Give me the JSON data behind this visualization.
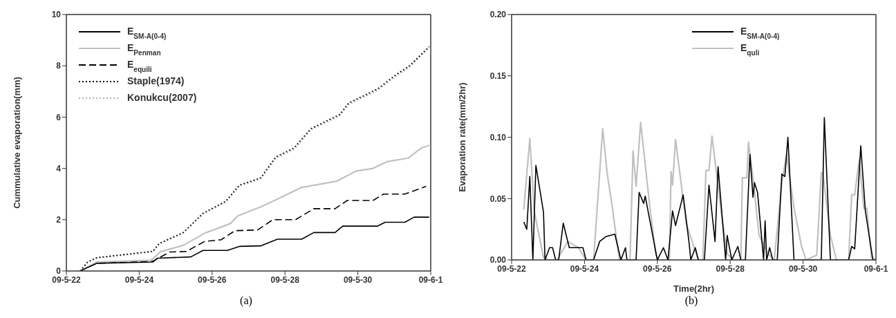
{
  "chart_data": [
    {
      "type": "line",
      "ylabel": "Cummulative evaporation(mm)",
      "legend": "top left",
      "marker": "none",
      "xlim": [
        "--05-22",
        "--06-01"
      ],
      "xticks": [
        {
          "value": "--05-22",
          "label": "09-5-22"
        },
        {
          "value": "--05-24",
          "label": "09-5-24"
        },
        {
          "value": "--05-26",
          "label": "09-5-26"
        },
        {
          "value": "--05-28",
          "label": "09-5-28"
        },
        {
          "value": "--05-30",
          "label": "09-5-30"
        },
        {
          "value": "--06-01",
          "label": "09-6-1"
        }
      ],
      "ylim": [
        0,
        10
      ],
      "yticks": [
        0,
        2,
        4,
        6,
        8,
        10
      ],
      "annotations": [
        "(a)"
      ],
      "series": [
        {
          "name": "E$_{SM-A(0-4)}$",
          "color": "#000000",
          "line_style": "solid",
          "x": [
            "--05-22T09:00",
            "--05-22T20:00",
            "--05-24T09:00",
            "--05-24T12:00",
            "--05-25T10:00",
            "--05-25T18:00",
            "--05-26T10:00",
            "--05-26T18:00",
            "--05-27T08:00",
            "--05-27T19:00",
            "--05-28T11:00",
            "--05-28T19:00",
            "--05-29T09:00",
            "--05-29T14:00",
            "--05-30T13:00",
            "--05-30T18:00",
            "--05-31T07:00",
            "--05-31T13:00",
            "--05-31T23:00"
          ],
          "values": [
            0,
            0.3,
            0.35,
            0.5,
            0.55,
            0.8,
            0.8,
            0.96,
            0.98,
            1.24,
            1.24,
            1.5,
            1.5,
            1.75,
            1.75,
            1.9,
            1.9,
            2.1,
            2.1
          ]
        },
        {
          "name": "E$_{Penman}$",
          "color": "#c0c0c0",
          "line_style": "solid",
          "x": [
            "--05-22T09:00",
            "--05-22T20:00",
            "--05-24T08:00",
            "--05-24T14:00",
            "--05-25T05:00",
            "--05-25T20:00",
            "--05-26T01:00",
            "--05-26T12:00",
            "--05-26T17:00",
            "--05-27T08:00",
            "--05-27T19:00",
            "--05-28T11:00",
            "--05-29T10:00",
            "--05-29T23:00",
            "--05-30T10:00",
            "--05-30T19:00",
            "--05-31T09:00",
            "--05-31T18:00",
            "--05-31T23:00"
          ],
          "values": [
            0,
            0.35,
            0.42,
            0.75,
            1.0,
            1.5,
            1.6,
            1.85,
            2.15,
            2.5,
            2.8,
            3.26,
            3.5,
            3.9,
            4.0,
            4.26,
            4.4,
            4.8,
            4.9
          ]
        },
        {
          "name": "E$_{equili}$",
          "color": "#000000",
          "line_style": "dashed",
          "x": [
            "--05-22T09:00",
            "--05-22T20:00",
            "--05-24T09:00",
            "--05-24T20:00",
            "--05-25T07:00",
            "--05-25T19:00",
            "--05-26T06:00",
            "--05-26T15:00",
            "--05-27T06:00",
            "--05-27T16:00",
            "--05-28T07:00",
            "--05-28T19:00",
            "--05-29T09:00",
            "--05-29T17:00",
            "--05-30T10:00",
            "--05-30T17:00",
            "--05-31T07:00",
            "--05-31T21:00"
          ],
          "values": [
            0,
            0.3,
            0.38,
            0.74,
            0.76,
            1.15,
            1.22,
            1.57,
            1.6,
            2.0,
            2.0,
            2.43,
            2.43,
            2.75,
            2.75,
            3.0,
            3.0,
            3.3
          ]
        },
        {
          "name": "Staple(1974)",
          "color": "#000000",
          "line_style": "dotted",
          "x": [
            "--05-22T09:00",
            "--05-22T14:00",
            "--05-22T20:00",
            "--05-24T09:00",
            "--05-24T13:00",
            "--05-25T05:00",
            "--05-25T18:00",
            "--05-26T09:00",
            "--05-26T18:00",
            "--05-27T08:00",
            "--05-27T18:00",
            "--05-28T06:00",
            "--05-28T17:00",
            "--05-29T12:00",
            "--05-29T18:00",
            "--05-30T13:00",
            "--05-31T01:00",
            "--05-31T10:00",
            "--05-31T23:00"
          ],
          "values": [
            0,
            0.35,
            0.52,
            0.77,
            1.07,
            1.5,
            2.25,
            2.72,
            3.35,
            3.63,
            4.45,
            4.8,
            5.55,
            6.1,
            6.55,
            7.1,
            7.65,
            8.0,
            8.75
          ]
        },
        {
          "name": "Konukcu(2007)",
          "color": "#b0b0b0",
          "line_style": "dotted",
          "x": [
            "--05-22T09:00",
            "--05-22T14:00",
            "--05-22T20:00",
            "--05-24T09:00",
            "--05-24T13:00",
            "--05-25T05:00",
            "--05-25T18:00",
            "--05-26T09:00",
            "--05-26T18:00",
            "--05-27T08:00",
            "--05-27T18:00",
            "--05-28T06:00",
            "--05-28T17:00",
            "--05-29T12:00",
            "--05-29T18:00",
            "--05-30T13:00",
            "--05-31T01:00",
            "--05-31T10:00",
            "--05-31T23:00"
          ],
          "values": [
            0,
            0.33,
            0.5,
            0.75,
            1.05,
            1.48,
            2.22,
            2.7,
            3.32,
            3.6,
            4.4,
            4.75,
            5.5,
            6.05,
            6.5,
            7.05,
            7.6,
            7.95,
            8.7
          ]
        }
      ]
    },
    {
      "type": "line",
      "xlabel": "Time(2hr)",
      "ylabel": "Evaporation rate(mm/2hr)",
      "legend": "top right",
      "marker": "none",
      "xlim": [
        "--05-22",
        "--06-01"
      ],
      "xticks": [
        {
          "value": "--05-22",
          "label": "09-5-22"
        },
        {
          "value": "--05-24",
          "label": "09-5-24"
        },
        {
          "value": "--05-26",
          "label": "09-5-26"
        },
        {
          "value": "--05-28",
          "label": "09-5-28"
        },
        {
          "value": "--05-30",
          "label": "09-5-30"
        },
        {
          "value": "--06-01",
          "label": "09-6-1"
        }
      ],
      "ylim": [
        0,
        0.2
      ],
      "yticks": [
        {
          "value": 0,
          "label": "0.00"
        },
        {
          "value": 0.05,
          "label": "0.05"
        },
        {
          "value": 0.1,
          "label": "0.10"
        },
        {
          "value": 0.15,
          "label": "0.15"
        },
        {
          "value": 0.2,
          "label": "0.20"
        }
      ],
      "annotations": [
        "(b)"
      ],
      "series": [
        {
          "name": "E$_{SM-A(0-4)}$",
          "color": "#000000",
          "line_style": "solid",
          "x": [
            "--05-22T08:00",
            "--05-22T10:00",
            "--05-22T12:00",
            "--05-22T14:00",
            "--05-22T16:00",
            "--05-22T21:00",
            "--05-22T22:00",
            "--05-23T01:00",
            "--05-23T03:00",
            "--05-23T05:00",
            "--05-23T07:00",
            "--05-23T10:00",
            "--05-23T14:00",
            "--05-23T23:00",
            "--05-24T01:00",
            "--05-24T06:00",
            "--05-24T10:00",
            "--05-24T14:00",
            "--05-24T20:00",
            "--05-25T00:00",
            "--05-25T03:00",
            "--05-25T04:00",
            "--05-25T10:00",
            "--05-25T12:00",
            "--05-25T15:00",
            "--05-25T16:00",
            "--05-26T00:00",
            "--05-26T04:00",
            "--05-26T07:00",
            "--05-26T10:00",
            "--05-26T12:00",
            "--05-26T17:00",
            "--05-26T21:00",
            "--05-26T22:00",
            "--05-27T01:00",
            "--05-27T03:00",
            "--05-27T07:00",
            "--05-27T10:00",
            "--05-27T14:00",
            "--05-27T16:00",
            "--05-27T21:00",
            "--05-27T22:00",
            "--05-28T01:00",
            "--05-28T05:00",
            "--05-28T07:00",
            "--05-28T10:00",
            "--05-28T13:00",
            "--05-28T15:00",
            "--05-28T16:00",
            "--05-28T18:00",
            "--05-28T22:00",
            "--05-28T23:00",
            "--05-29T00:00",
            "--05-29T02:00",
            "--05-29T04:00",
            "--05-29T07:00",
            "--05-29T10:00",
            "--05-29T12:00",
            "--05-29T14:00",
            "--05-29T18:00",
            "--05-30T00:00",
            "--05-30T07:00",
            "--05-30T12:00",
            "--05-30T14:00",
            "--05-30T18:00",
            "--05-31T06:00",
            "--05-31T08:00",
            "--05-31T10:00",
            "--05-31T14:00",
            "--05-31T17:00",
            "--05-31T22:00",
            "--06-01T00:00"
          ],
          "values": [
            0.031,
            0.025,
            0.068,
            0,
            0.077,
            0.039,
            0,
            0.01,
            0.01,
            0,
            0,
            0.03,
            0.01,
            0.01,
            0,
            0,
            0.015,
            0.019,
            0.021,
            0,
            0.01,
            0,
            0,
            0.055,
            0.046,
            0.052,
            0,
            0.01,
            0,
            0.04,
            0.028,
            0.053,
            0.013,
            0,
            0.01,
            0,
            0,
            0.061,
            0.015,
            0.076,
            0,
            0.02,
            0,
            0.011,
            0,
            0,
            0.086,
            0.051,
            0.063,
            0.055,
            0,
            0.032,
            0,
            0.01,
            0,
            0,
            0.07,
            0.068,
            0.1,
            0,
            0,
            0,
            0,
            0.116,
            0,
            0,
            0.011,
            0.009,
            0.093,
            0.04,
            0,
            0
          ]
        },
        {
          "name": "E$_{quli}$",
          "color": "#c0c0c0",
          "line_style": "solid",
          "x": [
            "--05-22T08:00",
            "--05-22T12:00",
            "--05-22T15:00",
            "--05-22T21:00",
            "--05-23T00:00",
            "--05-23T06:00",
            "--05-23T13:00",
            "--05-23T20:00",
            "--05-24T01:00",
            "--05-24T06:00",
            "--05-24T12:00",
            "--05-24T15:00",
            "--05-24T18:00",
            "--05-24T23:00",
            "--05-25T06:00",
            "--05-25T08:00",
            "--05-25T10:00",
            "--05-25T13:00",
            "--05-25T19:00",
            "--05-25T23:00",
            "--05-26T01:00",
            "--05-26T08:00",
            "--05-26T09:00",
            "--05-26T10:00",
            "--05-26T12:00",
            "--05-26T19:00",
            "--05-27T00:00",
            "--05-27T03:00",
            "--05-27T06:00",
            "--05-27T08:00",
            "--05-27T10:00",
            "--05-27T12:00",
            "--05-27T18:00",
            "--05-27T22:00",
            "--05-28T02:00",
            "--05-28T07:00",
            "--05-28T08:00",
            "--05-28T11:00",
            "--05-28T12:00",
            "--05-28T15:00",
            "--05-28T19:00",
            "--05-29T01:00",
            "--05-29T05:00",
            "--05-29T10:00",
            "--05-29T13:00",
            "--05-29T18:00",
            "--05-29T23:00",
            "--05-30T02:00",
            "--05-30T09:00",
            "--05-30T12:00",
            "--05-30T13:00",
            "--05-30T18:00",
            "--05-30T22:00",
            "--05-31T06:00",
            "--05-31T08:00",
            "--05-31T10:00",
            "--05-31T13:00",
            "--05-31T16:00",
            "--05-31T18:00",
            "--05-31T21:00",
            "--06-01T00:00"
          ],
          "values": [
            0.041,
            0.099,
            0.039,
            0.002,
            0,
            0,
            0.015,
            0.01,
            0,
            0,
            0.107,
            0.07,
            0.046,
            0,
            0,
            0.089,
            0.06,
            0.112,
            0.044,
            0.004,
            0,
            0,
            0.072,
            0.061,
            0.098,
            0.03,
            0.011,
            0,
            0,
            0.073,
            0.073,
            0.101,
            0.04,
            0.005,
            0,
            0,
            0.067,
            0.067,
            0.096,
            0.067,
            0.02,
            0.005,
            0,
            0.063,
            0.086,
            0.043,
            0.011,
            0,
            0.004,
            0.071,
            0.071,
            0.02,
            0,
            0,
            0.053,
            0.053,
            0.082,
            0.042,
            0.042,
            0.002,
            0
          ]
        }
      ]
    }
  ]
}
